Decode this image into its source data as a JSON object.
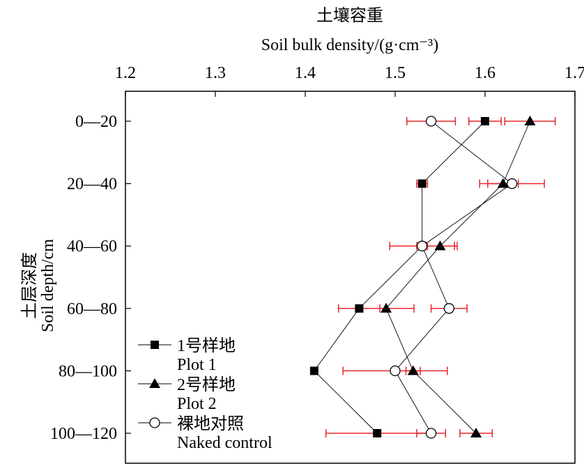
{
  "chart_data": {
    "type": "scatter",
    "orientation": "horizontal-errorbar-profile",
    "title_cn": "土壤容重",
    "title_en": "Soil bulk density/(g·cm⁻³)",
    "ylabel_cn": "土层深度",
    "ylabel_en": "Soil depth/cm",
    "xlim": [
      1.2,
      1.7
    ],
    "xticks": [
      "1.2",
      "1.3",
      "1.4",
      "1.5",
      "1.6",
      "1.7"
    ],
    "categories": [
      "0—20",
      "20—40",
      "40—60",
      "60—80",
      "80—100",
      "100—120"
    ],
    "series": [
      {
        "name_cn": "1号样地",
        "name_en": "Plot 1",
        "marker": "square",
        "values": [
          1.6,
          1.53,
          1.53,
          1.46,
          1.41,
          1.48
        ],
        "errors": [
          0.018,
          0.006,
          0.006,
          0.023,
          0.003,
          0.057
        ]
      },
      {
        "name_cn": "2号样地",
        "name_en": "Plot 2",
        "marker": "triangle",
        "values": [
          1.65,
          1.62,
          1.55,
          1.49,
          1.52,
          1.59
        ],
        "errors": [
          0.028,
          0.017,
          0.019,
          0.031,
          0.008,
          0.018
        ]
      },
      {
        "name_cn": "裸地对照",
        "name_en": "Naked control",
        "marker": "circle",
        "values": [
          1.54,
          1.63,
          1.53,
          1.56,
          1.5,
          1.54
        ],
        "errors": [
          0.027,
          0.036,
          0.036,
          0.02,
          0.058,
          0.016
        ]
      }
    ],
    "legend": "bottom-left",
    "error_color": "#e8262a",
    "grid": false
  }
}
